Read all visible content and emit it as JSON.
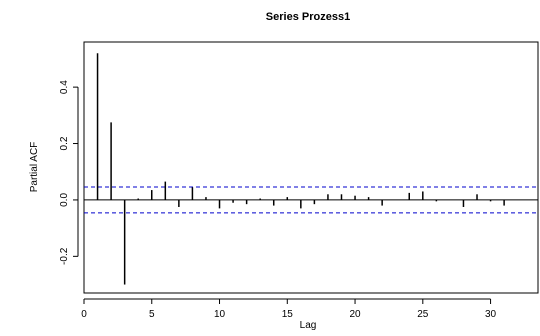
{
  "chart_data": {
    "type": "bar",
    "title": "Series  Prozess1",
    "xlabel": "Lag",
    "ylabel": "Partial ACF",
    "xlim": [
      0,
      33.5
    ],
    "ylim": [
      -0.33,
      0.56
    ],
    "x_ticks": [
      0,
      5,
      10,
      15,
      20,
      25,
      30
    ],
    "y_ticks": [
      -0.2,
      0.0,
      0.2,
      0.4
    ],
    "x_tick_labels": [
      "0",
      "5",
      "10",
      "15",
      "20",
      "25",
      "30"
    ],
    "y_tick_labels": [
      "-0.2",
      "0.0",
      "0.2",
      "0.4"
    ],
    "confidence_bound": 0.046,
    "lags": [
      1,
      2,
      3,
      4,
      5,
      6,
      7,
      8,
      9,
      10,
      11,
      12,
      13,
      14,
      15,
      16,
      17,
      18,
      19,
      20,
      21,
      22,
      23,
      24,
      25,
      26,
      27,
      28,
      29,
      30,
      31,
      32,
      33
    ],
    "values": [
      0.52,
      0.275,
      -0.3,
      0.005,
      0.035,
      0.065,
      -0.025,
      0.045,
      0.01,
      -0.03,
      -0.01,
      -0.015,
      0.005,
      -0.02,
      0.01,
      -0.03,
      -0.015,
      0.02,
      0.02,
      0.015,
      0.01,
      -0.02,
      0.0,
      0.025,
      0.03,
      -0.005,
      0.0,
      -0.025,
      0.02,
      -0.005,
      -0.02,
      0.0,
      0.0
    ],
    "colors": {
      "bars": "#000000",
      "bounds": "#0000cc",
      "zero_line": "#000000"
    }
  }
}
